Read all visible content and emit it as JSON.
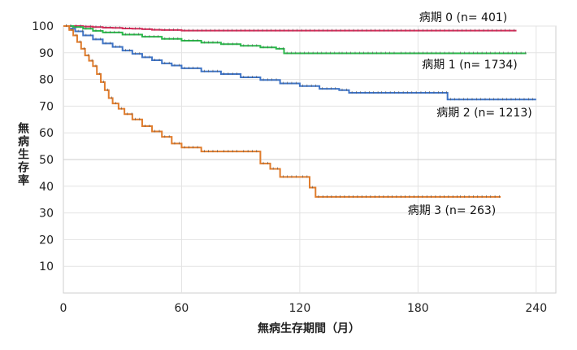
{
  "chart_data": {
    "type": "line",
    "title": "",
    "xlabel": "無病生存期間（月）",
    "ylabel": "無病生存率",
    "xlim": [
      0,
      250
    ],
    "ylim": [
      0,
      100
    ],
    "x_ticks": [
      0,
      60,
      120,
      180,
      240
    ],
    "y_ticks": [
      10,
      20,
      30,
      40,
      50,
      60,
      70,
      80,
      90,
      100
    ],
    "grid": true,
    "legend": "inline labels at right of each curve",
    "series": [
      {
        "name": "病期 0 (n= 401)",
        "color": "#d62d5a",
        "x": [
          0,
          5,
          10,
          15,
          20,
          25,
          30,
          35,
          40,
          45,
          50,
          60,
          230
        ],
        "y": [
          100,
          100,
          99.8,
          99.6,
          99.4,
          99.3,
          99.1,
          99.0,
          98.8,
          98.6,
          98.5,
          98.3,
          98.3
        ]
      },
      {
        "name": "病期 1 (n= 1734)",
        "color": "#2ab84a",
        "x": [
          0,
          5,
          10,
          15,
          20,
          30,
          40,
          50,
          60,
          70,
          80,
          90,
          100,
          108,
          112,
          140,
          170,
          200,
          235
        ],
        "y": [
          100,
          99.6,
          99.0,
          98.2,
          97.6,
          96.8,
          96.0,
          95.2,
          94.5,
          93.8,
          93.2,
          92.6,
          92.0,
          91.5,
          89.8,
          89.8,
          89.8,
          89.8,
          89.8
        ]
      },
      {
        "name": "病期 2 (n= 1213)",
        "color": "#3f74c6",
        "x": [
          0,
          3,
          6,
          10,
          15,
          20,
          25,
          30,
          35,
          40,
          45,
          50,
          55,
          60,
          70,
          80,
          90,
          100,
          110,
          120,
          130,
          140,
          145,
          160,
          180,
          193,
          195,
          240
        ],
        "y": [
          100,
          99.0,
          98.0,
          96.5,
          95.0,
          93.5,
          92.2,
          90.8,
          89.6,
          88.3,
          87.2,
          86.0,
          85.2,
          84.2,
          83.0,
          82.0,
          80.8,
          79.8,
          78.5,
          77.5,
          76.5,
          76.0,
          75.0,
          75.0,
          75.0,
          75.0,
          72.5,
          72.5
        ]
      },
      {
        "name": "病期 3 (n= 263)",
        "color": "#e07c2c",
        "x": [
          0,
          3,
          5,
          7,
          9,
          11,
          13,
          15,
          17,
          19,
          21,
          23,
          25,
          28,
          31,
          35,
          40,
          45,
          50,
          55,
          60,
          70,
          80,
          90,
          100,
          105,
          110,
          120,
          125,
          128,
          150,
          200,
          222
        ],
        "y": [
          100,
          98.5,
          96.5,
          94.0,
          91.5,
          89.0,
          87.0,
          85.0,
          82.0,
          79.0,
          76.0,
          73.0,
          71.0,
          69.0,
          67.0,
          65.0,
          62.5,
          60.5,
          58.5,
          56.0,
          54.5,
          53.0,
          53.0,
          53.0,
          48.5,
          46.5,
          43.5,
          43.5,
          39.5,
          36.0,
          36.0,
          36.0,
          36.0
        ]
      }
    ]
  }
}
